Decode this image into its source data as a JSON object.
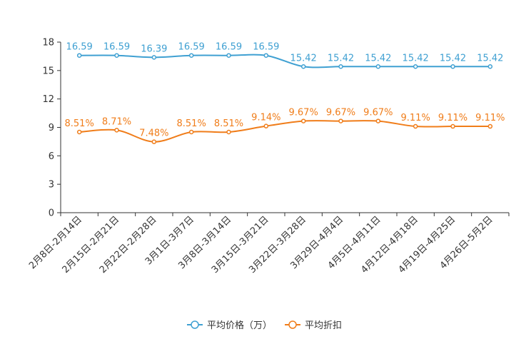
{
  "chart_data": {
    "type": "line",
    "title": "",
    "xlabel": "",
    "ylabel": "",
    "ylim": [
      0,
      18
    ],
    "yticks": [
      0,
      3,
      6,
      9,
      12,
      15,
      18
    ],
    "ytick_labels": [
      "0",
      "3",
      "6",
      "9",
      "12",
      "15",
      "18"
    ],
    "grid": false,
    "legend_position": "bottom-center",
    "categories": [
      "2月8日-2月14日",
      "2月15日-2月21日",
      "2月22日-2月28日",
      "3月1日-3月7日",
      "3月8日-3月14日",
      "3月15日-3月21日",
      "3月22日-3月28日",
      "3月29日-4月4日",
      "4月5日-4月11日",
      "4月12日-4月18日",
      "4月19日-4月25日",
      "4月26日-5月2日"
    ],
    "series": [
      {
        "name": "平均价格（万）",
        "color": "#3fa0d2",
        "values": [
          16.59,
          16.59,
          16.39,
          16.59,
          16.59,
          16.59,
          15.42,
          15.42,
          15.42,
          15.42,
          15.42,
          15.42
        ],
        "labels": [
          "16.59",
          "16.59",
          "16.39",
          "16.59",
          "16.59",
          "16.59",
          "15.42",
          "15.42",
          "15.42",
          "15.42",
          "15.42",
          "15.42"
        ]
      },
      {
        "name": "平均折扣",
        "color": "#f07d1a",
        "values": [
          8.51,
          8.71,
          7.48,
          8.51,
          8.51,
          9.14,
          9.67,
          9.67,
          9.67,
          9.11,
          9.11,
          9.11
        ],
        "labels": [
          "8.51%",
          "8.71%",
          "7.48%",
          "8.51%",
          "8.51%",
          "9.14%",
          "9.67%",
          "9.67%",
          "9.67%",
          "9.11%",
          "9.11%",
          "9.11%"
        ]
      }
    ]
  }
}
